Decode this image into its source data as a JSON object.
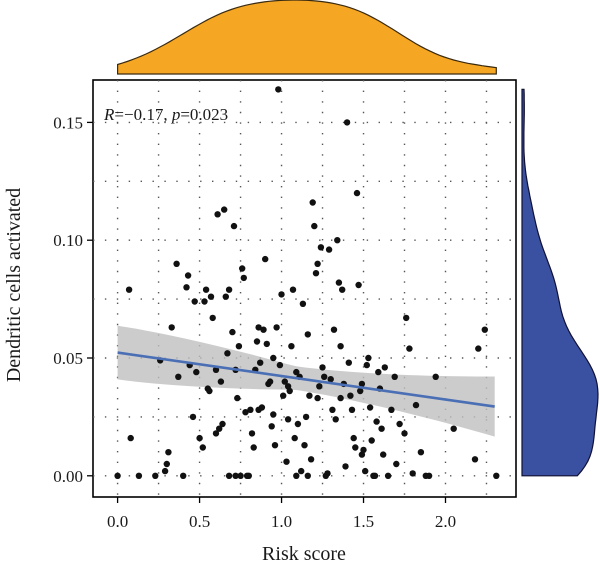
{
  "chart_data": {
    "type": "scatter",
    "title": "",
    "xlabel": "Risk score",
    "ylabel": "Dendritic cells activated",
    "xlim": [
      -0.15,
      2.43
    ],
    "ylim": [
      -0.009,
      0.168
    ],
    "x_ticks": [
      0.0,
      0.5,
      1.0,
      1.5,
      2.0
    ],
    "x_tick_labels": [
      "0.0",
      "0.5",
      "1.0",
      "1.5",
      "2.0"
    ],
    "y_ticks": [
      0.0,
      0.05,
      0.1,
      0.15
    ],
    "y_tick_labels": [
      "0.00",
      "0.05",
      "0.10",
      "0.15"
    ],
    "grid": "dotted",
    "annotation": {
      "r_label": "R",
      "r_value": "=−0.17, ",
      "p_label": "p",
      "p_value": "=0.023"
    },
    "regression": {
      "x": [
        0.0,
        2.3
      ],
      "y": [
        0.0523,
        0.0294
      ],
      "ci_lower": [
        0.0412,
        0.0165
      ],
      "ci_upper": [
        0.064,
        0.042
      ],
      "line_color": "#4a6fb5",
      "band_color": "#bfbfbf"
    },
    "marginals": {
      "x_color": "#f5a623",
      "y_color": "#3a50a0"
    },
    "points": [
      [
        0.0,
        0.0
      ],
      [
        0.07,
        0.079
      ],
      [
        0.08,
        0.016
      ],
      [
        0.23,
        0.0
      ],
      [
        0.26,
        0.049
      ],
      [
        0.29,
        0.002
      ],
      [
        0.3,
        0.005
      ],
      [
        0.31,
        0.01
      ],
      [
        0.33,
        0.063
      ],
      [
        0.36,
        0.09
      ],
      [
        0.37,
        0.042
      ],
      [
        0.4,
        0.0
      ],
      [
        0.42,
        0.08
      ],
      [
        0.43,
        0.085
      ],
      [
        0.44,
        0.047
      ],
      [
        0.46,
        0.025
      ],
      [
        0.47,
        0.074
      ],
      [
        0.48,
        0.044
      ],
      [
        0.5,
        0.016
      ],
      [
        0.52,
        0.012
      ],
      [
        0.53,
        0.074
      ],
      [
        0.54,
        0.079
      ],
      [
        0.55,
        0.037
      ],
      [
        0.56,
        0.036
      ],
      [
        0.57,
        0.076
      ],
      [
        0.58,
        0.067
      ],
      [
        0.6,
        0.018
      ],
      [
        0.6,
        0.045
      ],
      [
        0.61,
        0.111
      ],
      [
        0.62,
        0.02
      ],
      [
        0.63,
        0.04
      ],
      [
        0.64,
        0.022
      ],
      [
        0.65,
        0.113
      ],
      [
        0.66,
        0.076
      ],
      [
        0.67,
        0.052
      ],
      [
        0.68,
        0.079
      ],
      [
        0.7,
        0.061
      ],
      [
        0.71,
        0.106
      ],
      [
        0.72,
        0.045
      ],
      [
        0.73,
        0.033
      ],
      [
        0.74,
        0.055
      ],
      [
        0.75,
        0.0
      ],
      [
        0.76,
        0.088
      ],
      [
        0.77,
        0.084
      ],
      [
        0.78,
        0.027
      ],
      [
        0.79,
        0.0
      ],
      [
        0.8,
        0.0
      ],
      [
        0.81,
        0.028
      ],
      [
        0.82,
        0.018
      ],
      [
        0.83,
        0.012
      ],
      [
        0.84,
        0.045
      ],
      [
        0.85,
        0.057
      ],
      [
        0.86,
        0.063
      ],
      [
        0.87,
        0.048
      ],
      [
        0.88,
        0.029
      ],
      [
        0.89,
        0.062
      ],
      [
        0.9,
        0.092
      ],
      [
        0.91,
        0.056
      ],
      [
        0.92,
        0.039
      ],
      [
        0.93,
        0.04
      ],
      [
        0.94,
        0.021
      ],
      [
        0.95,
        0.05
      ],
      [
        0.96,
        0.013
      ],
      [
        0.97,
        0.063
      ],
      [
        0.98,
        0.164
      ],
      [
        0.99,
        0.047
      ],
      [
        1.0,
        0.077
      ],
      [
        1.01,
        0.034
      ],
      [
        1.02,
        0.04
      ],
      [
        1.03,
        0.006
      ],
      [
        1.04,
        0.038
      ],
      [
        1.05,
        0.036
      ],
      [
        1.06,
        0.055
      ],
      [
        1.07,
        0.079
      ],
      [
        1.08,
        0.016
      ],
      [
        1.09,
        0.044
      ],
      [
        1.1,
        0.022
      ],
      [
        1.11,
        0.042
      ],
      [
        1.12,
        0.002
      ],
      [
        1.13,
        0.073
      ],
      [
        1.14,
        0.013
      ],
      [
        1.15,
        0.025
      ],
      [
        1.16,
        0.06
      ],
      [
        1.17,
        0.034
      ],
      [
        1.18,
        0.007
      ],
      [
        1.19,
        0.116
      ],
      [
        1.2,
        0.106
      ],
      [
        1.21,
        0.086
      ],
      [
        1.22,
        0.09
      ],
      [
        1.23,
        0.038
      ],
      [
        1.24,
        0.097
      ],
      [
        1.25,
        0.046
      ],
      [
        1.26,
        0.042
      ],
      [
        1.27,
        0.0
      ],
      [
        1.28,
        0.001
      ],
      [
        1.29,
        0.096
      ],
      [
        1.3,
        0.041
      ],
      [
        1.31,
        0.028
      ],
      [
        1.32,
        0.062
      ],
      [
        1.33,
        0.024
      ],
      [
        1.34,
        0.1
      ],
      [
        1.35,
        0.082
      ],
      [
        1.36,
        0.055
      ],
      [
        1.37,
        0.079
      ],
      [
        1.38,
        0.039
      ],
      [
        1.39,
        0.004
      ],
      [
        1.4,
        0.15
      ],
      [
        1.41,
        0.048
      ],
      [
        1.42,
        0.034
      ],
      [
        1.43,
        0.028
      ],
      [
        1.44,
        0.016
      ],
      [
        1.45,
        0.012
      ],
      [
        1.46,
        0.12
      ],
      [
        1.47,
        0.081
      ],
      [
        1.48,
        0.036
      ],
      [
        1.49,
        0.009
      ],
      [
        1.5,
        0.011
      ],
      [
        1.51,
        0.002
      ],
      [
        1.52,
        0.047
      ],
      [
        1.53,
        0.05
      ],
      [
        1.54,
        0.029
      ],
      [
        1.55,
        0.015
      ],
      [
        1.56,
        0.0
      ],
      [
        1.57,
        0.0
      ],
      [
        1.58,
        0.023
      ],
      [
        1.59,
        0.044
      ],
      [
        1.6,
        0.037
      ],
      [
        1.61,
        0.02
      ],
      [
        1.62,
        0.009
      ],
      [
        1.63,
        0.046
      ],
      [
        1.65,
        0.0
      ],
      [
        1.67,
        0.028
      ],
      [
        1.69,
        0.042
      ],
      [
        1.7,
        0.005
      ],
      [
        1.72,
        0.022
      ],
      [
        1.75,
        0.018
      ],
      [
        1.76,
        0.067
      ],
      [
        1.78,
        0.054
      ],
      [
        1.8,
        0.001
      ],
      [
        1.82,
        0.03
      ],
      [
        1.85,
        0.01
      ],
      [
        1.88,
        0.0
      ],
      [
        1.9,
        0.0
      ],
      [
        1.94,
        0.042
      ],
      [
        2.05,
        0.02
      ],
      [
        2.18,
        0.007
      ],
      [
        2.2,
        0.054
      ],
      [
        2.24,
        0.062
      ],
      [
        2.31,
        0.0
      ],
      [
        0.13,
        0.0
      ],
      [
        0.72,
        0.0
      ],
      [
        0.86,
        0.028
      ],
      [
        1.04,
        0.024
      ],
      [
        1.22,
        0.033
      ],
      [
        1.36,
        0.033
      ],
      [
        1.09,
        0.0
      ],
      [
        0.95,
        0.026
      ],
      [
        1.16,
        0.0
      ],
      [
        1.49,
        0.039
      ],
      [
        0.68,
        0.0
      ]
    ]
  }
}
